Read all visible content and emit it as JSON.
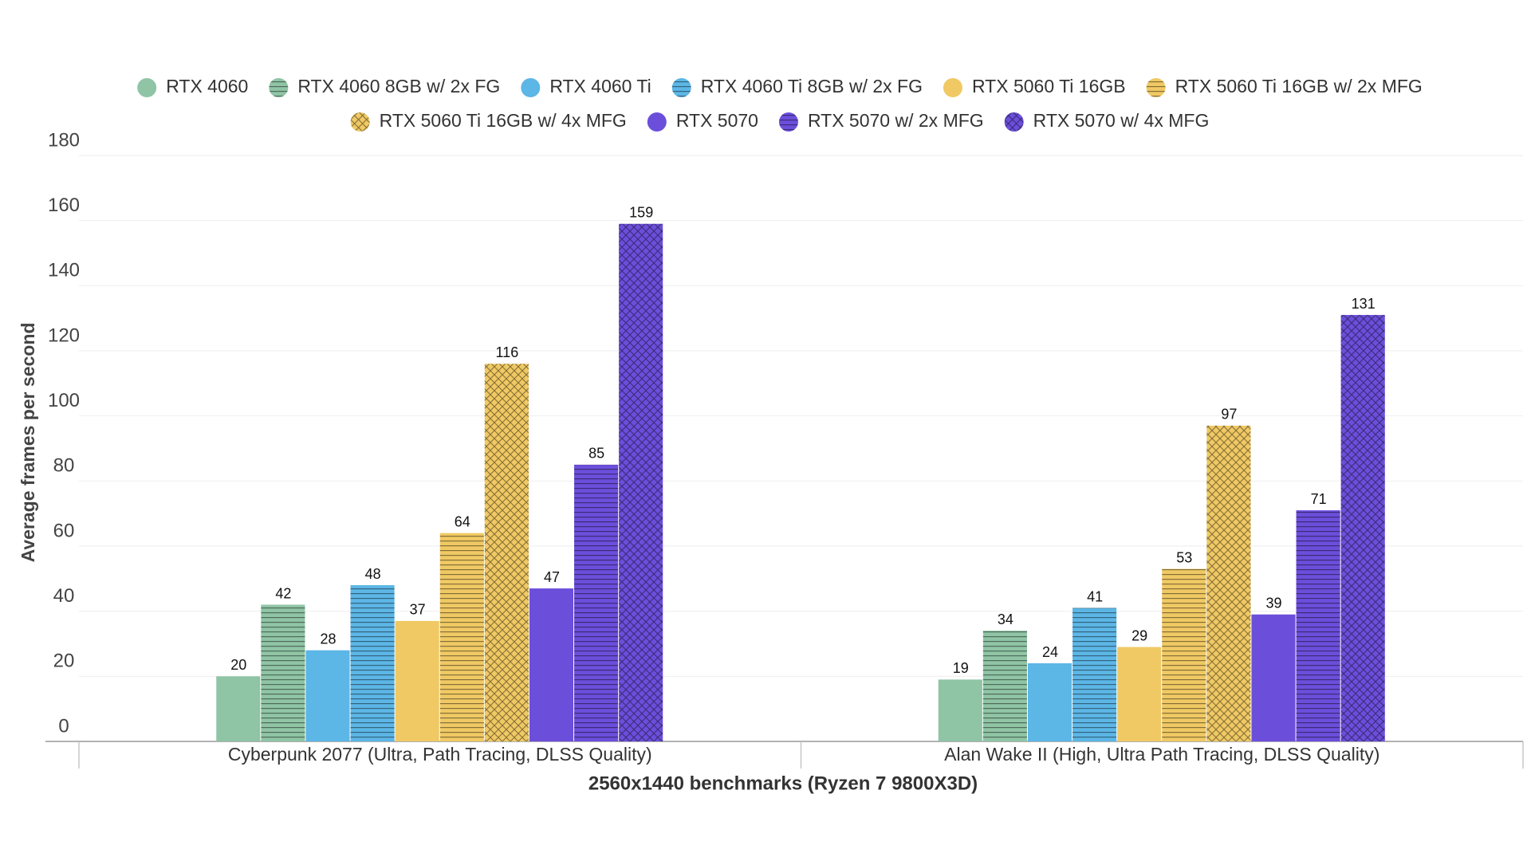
{
  "chart_data": {
    "type": "bar",
    "x_label": "2560x1440 benchmarks (Ryzen 7 9800X3D)",
    "y_label": "Average frames per second",
    "categories": [
      "Cyberpunk 2077 (Ultra, Path Tracing, DLSS Quality)",
      "Alan Wake II (High, Ultra Path Tracing, DLSS Quality)"
    ],
    "series": [
      {
        "name": "RTX 4060",
        "color": "#8fc4a5",
        "pattern": "solid",
        "values": [
          20,
          19
        ]
      },
      {
        "name": "RTX 4060 8GB w/ 2x FG",
        "color": "#8fc4a5",
        "pattern": "horizontal",
        "values": [
          42,
          34
        ]
      },
      {
        "name": "RTX 4060 Ti",
        "color": "#5cb6e6",
        "pattern": "solid",
        "values": [
          28,
          24
        ]
      },
      {
        "name": "RTX 4060 Ti 8GB w/ 2x FG",
        "color": "#5cb6e6",
        "pattern": "horizontal",
        "values": [
          48,
          41
        ]
      },
      {
        "name": "RTX 5060 Ti 16GB",
        "color": "#f0c964",
        "pattern": "solid",
        "values": [
          37,
          29
        ]
      },
      {
        "name": "RTX 5060 Ti 16GB w/ 2x MFG",
        "color": "#f0c964",
        "pattern": "horizontal",
        "values": [
          64,
          53
        ]
      },
      {
        "name": "RTX 5060 Ti 16GB w/ 4x MFG",
        "color": "#f0c964",
        "pattern": "crosshatch",
        "values": [
          116,
          97
        ]
      },
      {
        "name": "RTX 5070",
        "color": "#6b4fdb",
        "pattern": "solid",
        "values": [
          47,
          39
        ]
      },
      {
        "name": "RTX 5070 w/ 2x MFG",
        "color": "#6b4fdb",
        "pattern": "horizontal",
        "values": [
          85,
          71
        ]
      },
      {
        "name": "RTX 5070 w/ 4x MFG",
        "color": "#6b4fdb",
        "pattern": "crosshatch",
        "values": [
          159,
          131
        ]
      }
    ],
    "ylim": [
      0,
      180
    ],
    "yticks": [
      0,
      20,
      40,
      60,
      80,
      100,
      120,
      140,
      160,
      180
    ],
    "grid": true,
    "legend": "top"
  }
}
